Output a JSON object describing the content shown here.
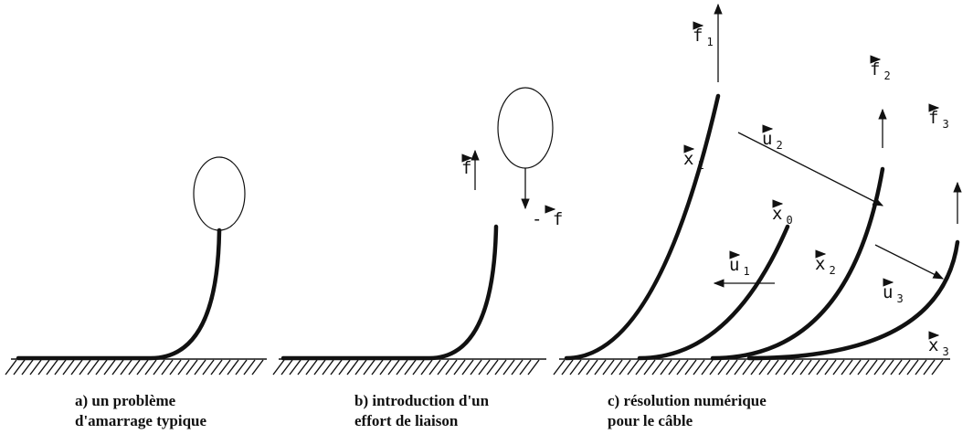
{
  "panels": [
    {
      "caption": [
        "a) un problème",
        "d'amarrage typique"
      ],
      "labels": []
    },
    {
      "caption": [
        "b) introduction d'un",
        "effort de liaison"
      ],
      "labels": [
        {
          "base": "f"
        },
        {
          "base": "- f"
        }
      ]
    },
    {
      "caption": [
        "c) résolution numérique",
        "pour le câble"
      ],
      "labels": [
        {
          "base": "f",
          "sub": "1"
        },
        {
          "base": "f",
          "sub": "2"
        },
        {
          "base": "f",
          "sub": "3"
        },
        {
          "base": "u",
          "sub": "2"
        },
        {
          "base": "u",
          "sub": "1"
        },
        {
          "base": "u",
          "sub": "3"
        },
        {
          "base": "x",
          "sub": "1"
        },
        {
          "base": "x",
          "sub": "0"
        },
        {
          "base": "x",
          "sub": "2"
        },
        {
          "base": "x",
          "sub": "3"
        }
      ]
    }
  ]
}
